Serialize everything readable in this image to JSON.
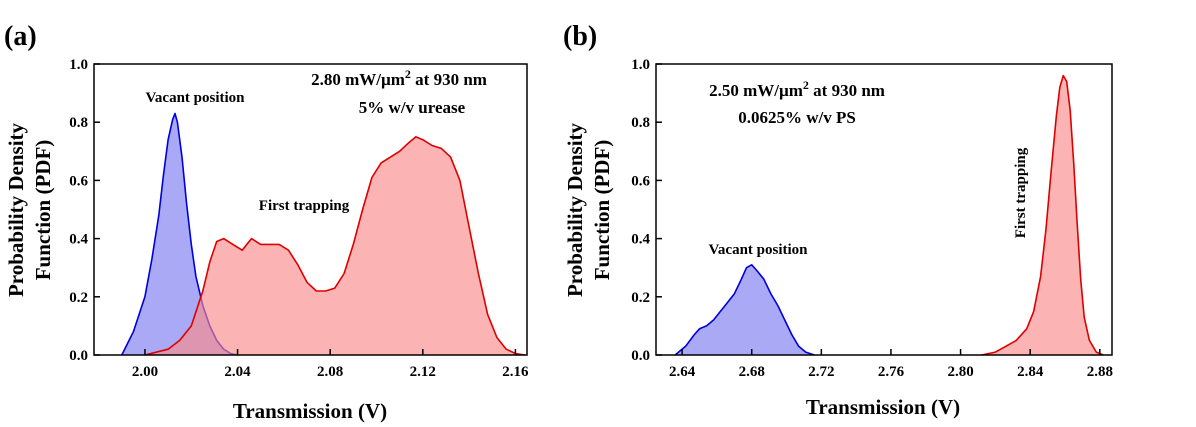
{
  "figure": {
    "panel_a_label": "(a)",
    "panel_b_label": "(b)"
  },
  "chart_data": [
    {
      "type": "area",
      "panel": "(a)",
      "title": "",
      "condition_line1_pre": "2.80 mW/µm",
      "condition_line1_sup": "2",
      "condition_line1_post": " at 930 nm",
      "condition_line2": "5% w/v urease",
      "xlabel": "Transmission (V)",
      "ylabel_line1": "Probability Density",
      "ylabel_line2": "Function (PDF)",
      "xlim": [
        1.978,
        2.165
      ],
      "ylim": [
        0,
        1.0
      ],
      "xticks": [
        2.0,
        2.04,
        2.08,
        2.12,
        2.16
      ],
      "xtick_labels": [
        "2.00",
        "2.04",
        "2.08",
        "2.12",
        "2.16"
      ],
      "yticks": [
        0.0,
        0.2,
        0.4,
        0.6,
        0.8,
        1.0
      ],
      "ytick_labels": [
        "0.0",
        "0.2",
        "0.4",
        "0.6",
        "0.8",
        "1.0"
      ],
      "annotations": [
        "Vacant position",
        "First trapping"
      ],
      "series": [
        {
          "name": "Vacant position",
          "color": "#0000dd",
          "fill": "#7b7bf0",
          "x": [
            1.99,
            1.995,
            2.0,
            2.003,
            2.006,
            2.008,
            2.01,
            2.012,
            2.013,
            2.014,
            2.016,
            2.018,
            2.02,
            2.022,
            2.025,
            2.028,
            2.031,
            2.034,
            2.037,
            2.04
          ],
          "y": [
            0.0,
            0.08,
            0.2,
            0.33,
            0.48,
            0.62,
            0.74,
            0.81,
            0.83,
            0.8,
            0.68,
            0.52,
            0.38,
            0.27,
            0.17,
            0.1,
            0.05,
            0.02,
            0.005,
            0.0
          ]
        },
        {
          "name": "First trapping",
          "color": "#dd0000",
          "fill": "#f98a8a",
          "x": [
            2.0,
            2.01,
            2.015,
            2.02,
            2.025,
            2.028,
            2.031,
            2.034,
            2.038,
            2.042,
            2.044,
            2.046,
            2.05,
            2.054,
            2.058,
            2.062,
            2.066,
            2.07,
            2.074,
            2.078,
            2.082,
            2.086,
            2.09,
            2.094,
            2.098,
            2.102,
            2.106,
            2.11,
            2.114,
            2.117,
            2.12,
            2.124,
            2.128,
            2.132,
            2.136,
            2.14,
            2.144,
            2.148,
            2.152,
            2.156,
            2.16,
            2.164
          ],
          "y": [
            0.0,
            0.02,
            0.05,
            0.1,
            0.22,
            0.32,
            0.39,
            0.4,
            0.38,
            0.36,
            0.38,
            0.4,
            0.38,
            0.38,
            0.38,
            0.36,
            0.31,
            0.25,
            0.22,
            0.22,
            0.23,
            0.28,
            0.38,
            0.5,
            0.61,
            0.66,
            0.68,
            0.7,
            0.73,
            0.75,
            0.74,
            0.72,
            0.71,
            0.68,
            0.6,
            0.44,
            0.28,
            0.14,
            0.06,
            0.02,
            0.005,
            0.0
          ]
        }
      ]
    },
    {
      "type": "area",
      "panel": "(b)",
      "title": "",
      "condition_line1_pre": "2.50 mW/µm",
      "condition_line1_sup": "2",
      "condition_line1_post": " at 930 nm",
      "condition_line2": "0.0625% w/v PS",
      "xlabel": "Transmission (V)",
      "ylabel_line1": "Probability Density",
      "ylabel_line2": "Function (PDF)",
      "xlim": [
        2.625,
        2.887
      ],
      "ylim": [
        0,
        1.0
      ],
      "xticks": [
        2.64,
        2.68,
        2.72,
        2.76,
        2.8,
        2.84,
        2.88
      ],
      "xtick_labels": [
        "2.64",
        "2.68",
        "2.72",
        "2.76",
        "2.80",
        "2.84",
        "2.88"
      ],
      "yticks": [
        0.0,
        0.2,
        0.4,
        0.6,
        0.8,
        1.0
      ],
      "ytick_labels": [
        "0.0",
        "0.2",
        "0.4",
        "0.6",
        "0.8",
        "1.0"
      ],
      "annotations": [
        "Vacant position",
        "First trapping"
      ],
      "series": [
        {
          "name": "Vacant position",
          "color": "#0000dd",
          "fill": "#7b7bf0",
          "x": [
            2.636,
            2.642,
            2.647,
            2.65,
            2.654,
            2.658,
            2.662,
            2.666,
            2.67,
            2.674,
            2.677,
            2.68,
            2.683,
            2.687,
            2.691,
            2.695,
            2.699,
            2.703,
            2.707,
            2.711,
            2.716
          ],
          "y": [
            0.0,
            0.03,
            0.07,
            0.09,
            0.1,
            0.12,
            0.15,
            0.18,
            0.21,
            0.26,
            0.3,
            0.31,
            0.29,
            0.26,
            0.21,
            0.17,
            0.12,
            0.07,
            0.03,
            0.01,
            0.0
          ]
        },
        {
          "name": "First trapping",
          "color": "#dd0000",
          "fill": "#f98a8a",
          "x": [
            2.812,
            2.82,
            2.826,
            2.832,
            2.838,
            2.842,
            2.846,
            2.849,
            2.852,
            2.855,
            2.857,
            2.859,
            2.861,
            2.863,
            2.865,
            2.867,
            2.869,
            2.871,
            2.874,
            2.878,
            2.882
          ],
          "y": [
            0.0,
            0.01,
            0.03,
            0.05,
            0.09,
            0.15,
            0.27,
            0.43,
            0.63,
            0.82,
            0.92,
            0.96,
            0.94,
            0.84,
            0.66,
            0.45,
            0.26,
            0.13,
            0.05,
            0.01,
            0.0
          ]
        }
      ]
    }
  ]
}
